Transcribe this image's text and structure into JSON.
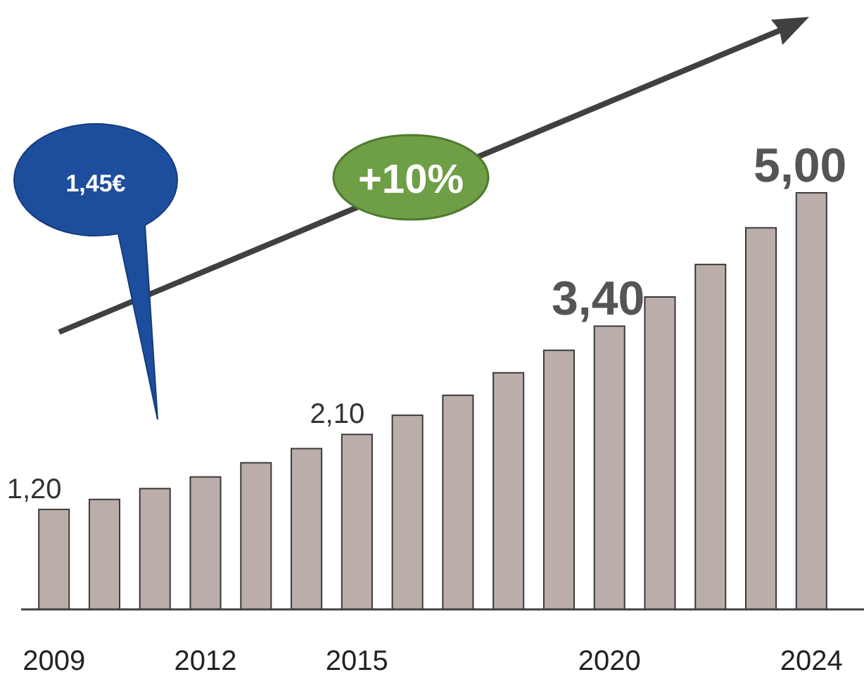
{
  "chart_data": {
    "type": "bar",
    "categories": [
      "2009",
      null,
      null,
      "2012",
      null,
      null,
      "2015",
      null,
      null,
      null,
      null,
      "2020",
      null,
      null,
      null,
      "2024"
    ],
    "values": [
      1.2,
      1.32,
      1.45,
      1.59,
      1.76,
      1.93,
      2.1,
      2.33,
      2.57,
      2.84,
      3.11,
      3.4,
      3.75,
      4.14,
      4.58,
      5.0
    ],
    "value_labels": [
      "1,20",
      null,
      null,
      null,
      null,
      null,
      "2,10",
      null,
      null,
      null,
      null,
      "3,40",
      null,
      null,
      null,
      "5,00"
    ],
    "color": "#bbaeaa",
    "annotations": [
      "1,45€",
      "+10%"
    ]
  }
}
